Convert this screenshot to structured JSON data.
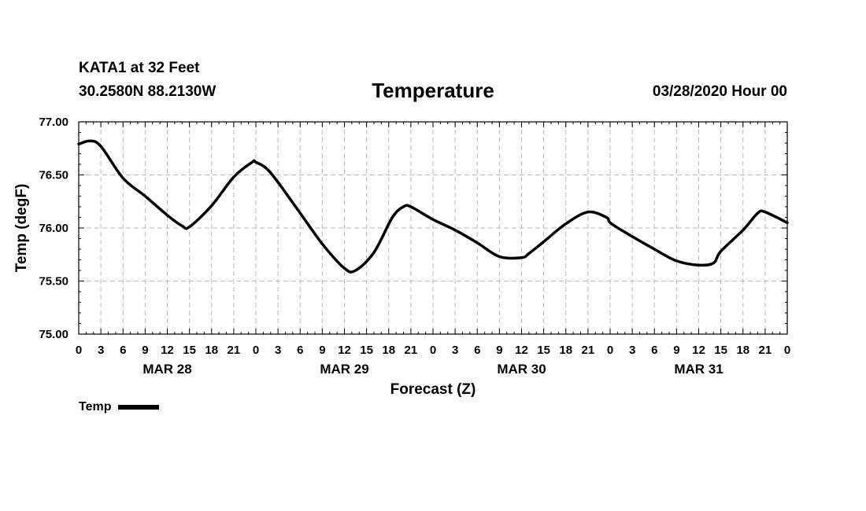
{
  "header": {
    "station": "KATA1 at 32 Feet",
    "coords": "30.2580N 88.2130W",
    "title": "Temperature",
    "runtime": "03/28/2020 Hour 00"
  },
  "legend": {
    "label": "Temp",
    "color": "#000000"
  },
  "chart_data": {
    "type": "line",
    "title": "Temperature",
    "xlabel": "Forecast (Z)",
    "ylabel": "Temp (degF)",
    "xlim": [
      0,
      96
    ],
    "ylim": [
      75.0,
      77.0
    ],
    "yticks": [
      "75.00",
      "75.50",
      "76.00",
      "76.50",
      "77.00"
    ],
    "xtick_labels": [
      "0",
      "3",
      "6",
      "9",
      "12",
      "15",
      "18",
      "21",
      "0",
      "3",
      "6",
      "9",
      "12",
      "15",
      "18",
      "21",
      "0",
      "3",
      "6",
      "9",
      "12",
      "15",
      "18",
      "21",
      "0",
      "3",
      "6",
      "9",
      "12",
      "15",
      "18",
      "21",
      "0"
    ],
    "date_labels": [
      {
        "label": "MAR 28",
        "hour": 12
      },
      {
        "label": "MAR 29",
        "hour": 36
      },
      {
        "label": "MAR 30",
        "hour": 60
      },
      {
        "label": "MAR 31",
        "hour": 84
      }
    ],
    "grid": true,
    "series": [
      {
        "name": "Temp",
        "color": "#000000",
        "x": [
          0,
          1.5,
          3,
          6,
          9,
          12,
          14,
          15,
          18,
          21,
          23.5,
          24,
          26,
          30,
          33,
          36,
          37.5,
          40,
          42.5,
          44,
          45,
          48,
          51,
          54,
          57,
          60,
          61,
          63,
          66,
          69,
          71.5,
          72,
          74,
          78,
          81,
          84,
          86,
          87,
          90,
          92,
          93,
          96
        ],
        "values": [
          76.79,
          76.82,
          76.77,
          76.47,
          76.3,
          76.12,
          76.02,
          76.01,
          76.21,
          76.48,
          76.62,
          76.62,
          76.52,
          76.14,
          75.85,
          75.62,
          75.6,
          75.77,
          76.1,
          76.2,
          76.2,
          76.08,
          75.98,
          75.86,
          75.73,
          75.72,
          75.76,
          75.87,
          76.04,
          76.15,
          76.1,
          76.05,
          75.96,
          75.8,
          75.69,
          75.65,
          75.67,
          75.78,
          75.98,
          76.14,
          76.15,
          76.05
        ]
      }
    ]
  }
}
